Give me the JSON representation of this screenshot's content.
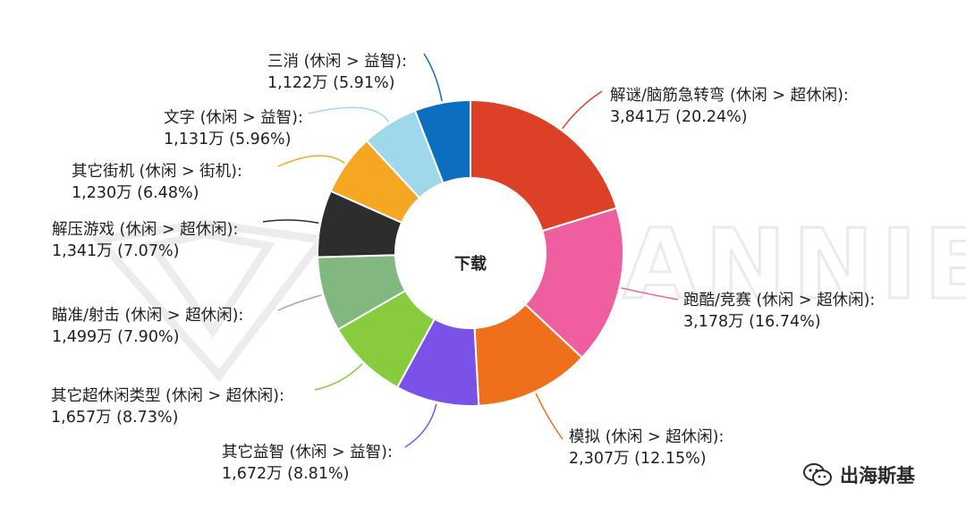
{
  "chart_data": {
    "type": "pie",
    "style": "donut",
    "title": "下载",
    "categories": [
      "解谜/脑筋急转弯 (休闲 > 超休闲):",
      "跑酷/竞赛 (休闲 > 超休闲):",
      "模拟 (休闲 > 超休闲):",
      "其它益智 (休闲 > 益智):",
      "其它超休闲类型 (休闲 > 超休闲):",
      "瞄准/射击 (休闲 > 超休闲):",
      "解压游戏 (休闲 > 超休闲):",
      "其它街机 (休闲 > 街机):",
      "文字 (休闲 > 益智):",
      "三消 (休闲 > 益智):"
    ],
    "values": [
      20.24,
      16.74,
      12.15,
      8.81,
      8.73,
      7.9,
      7.07,
      6.48,
      5.96,
      5.91
    ],
    "value_labels": [
      "3,841万 (20.24%)",
      "3,178万 (16.74%)",
      "2,307万 (12.15%)",
      "1,672万 (8.81%)",
      "1,657万 (8.73%)",
      "1,499万 (7.90%)",
      "1,341万 (7.07%)",
      "1,230万 (6.48%)",
      "1,131万 (5.96%)",
      "1,122万 (5.91%)"
    ],
    "colors": [
      "#dc4128",
      "#ef5f9f",
      "#f06f1a",
      "#7a52e8",
      "#86cc3c",
      "#80b880",
      "#2d2d2d",
      "#f5a623",
      "#9fd8ea",
      "#0b6ebf"
    ],
    "legend": "none"
  },
  "watermark": {
    "text": "APP ANNIE"
  },
  "branding": {
    "text": "出海斯基",
    "icon": "wechat-icon"
  }
}
